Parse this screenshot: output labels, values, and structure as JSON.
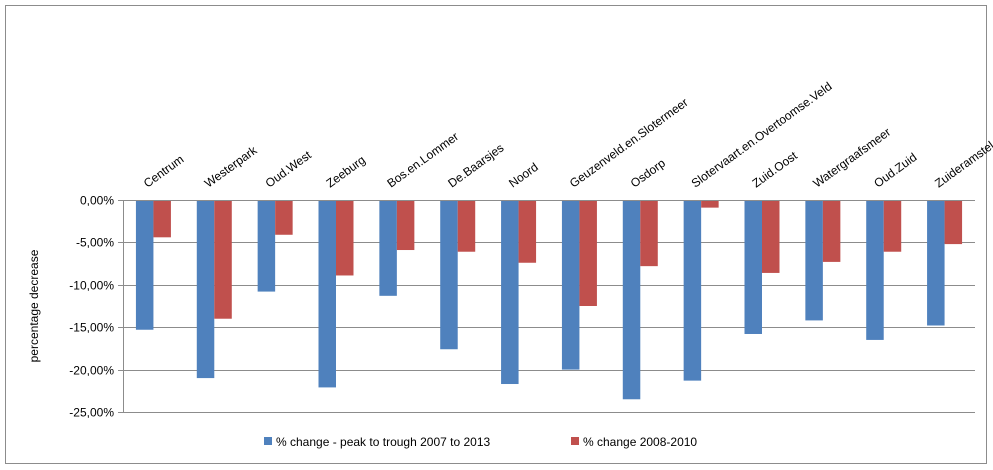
{
  "chart_data": {
    "type": "bar",
    "title": "",
    "xlabel": "",
    "ylabel": "percentage decrease",
    "categories": [
      "Centrum",
      "Westerpark",
      "Oud.West",
      "Zeeburg",
      "Bos.en.Lommer",
      "De.Baarsjes",
      "Noord",
      "Geuzenveld.en.Slotermeer",
      "Osdorp",
      "Slotervaart.en.Overtoomse.Veld",
      "Zuid.Oost",
      "Watergraafsmeer",
      "Oud.Zuid",
      "Zuideramstel"
    ],
    "series": [
      {
        "name": "% change - peak to trough 2007 to 2013",
        "color": "#4f81bd",
        "values": [
          -15.3,
          -21.0,
          -10.8,
          -22.1,
          -11.3,
          -17.6,
          -21.7,
          -20.0,
          -23.5,
          -21.3,
          -15.8,
          -14.2,
          -16.5,
          -14.8
        ]
      },
      {
        "name": "% change 2008-2010",
        "color": "#c0504d",
        "values": [
          -4.4,
          -14.0,
          -4.1,
          -8.9,
          -5.9,
          -6.1,
          -7.4,
          -12.5,
          -7.8,
          -0.9,
          -8.6,
          -7.3,
          -6.1,
          -5.2
        ]
      }
    ],
    "ylim": [
      -25,
      0
    ],
    "yticks": [
      0,
      -5,
      -10,
      -15,
      -20,
      -25
    ],
    "ytick_labels": [
      "0,00%",
      "-5,00%",
      "-10,00%",
      "-15,00%",
      "-20,00%",
      "-25,00%"
    ],
    "grid": true,
    "legend_position": "bottom"
  }
}
